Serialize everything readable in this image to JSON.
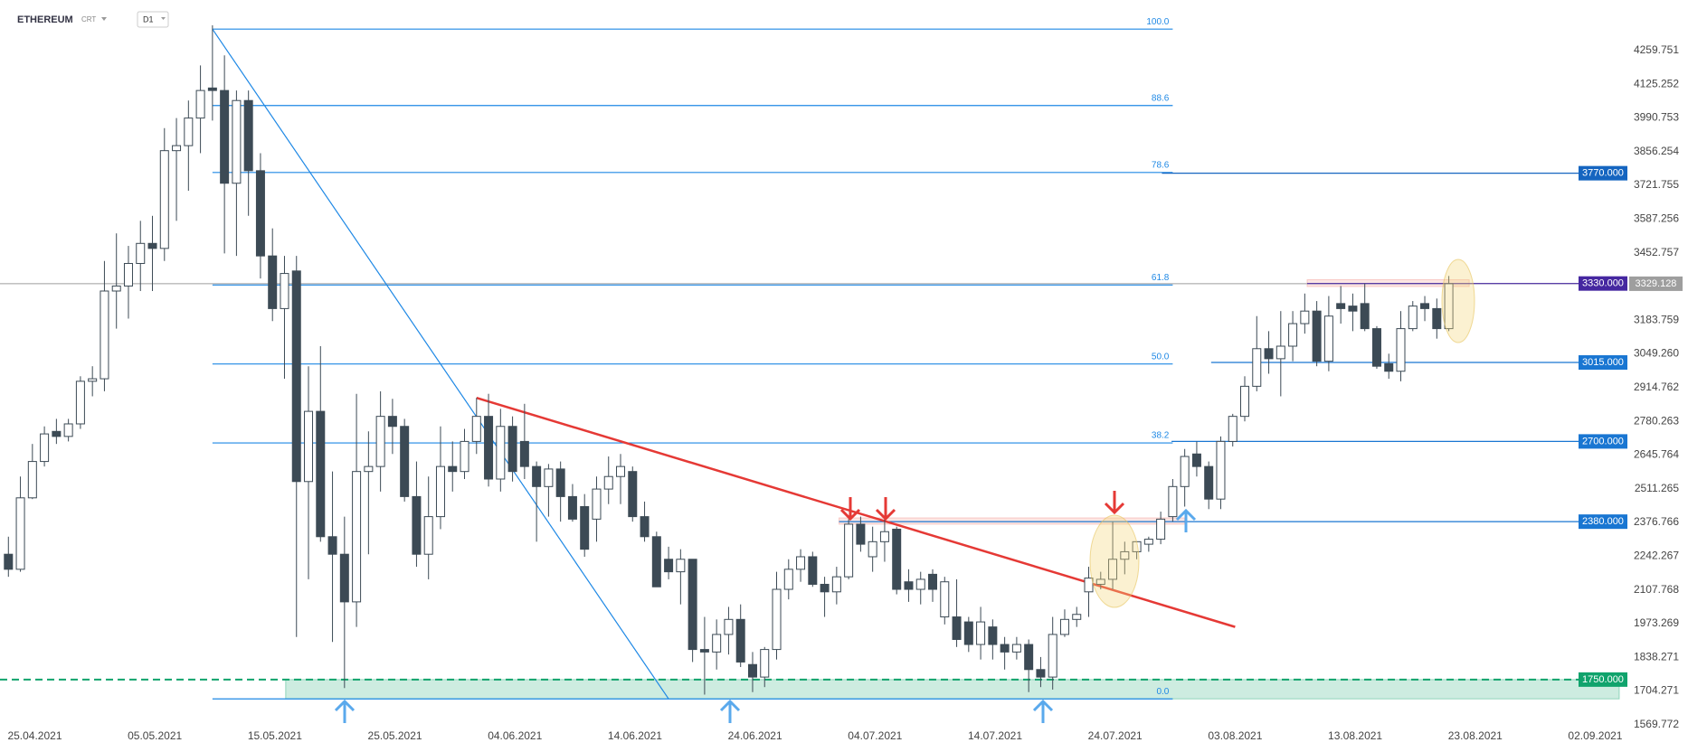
{
  "header": {
    "symbol": "ETHEREUM",
    "market": "CRT",
    "interval": "D1"
  },
  "chart_data": {
    "type": "candlestick",
    "colors": {
      "up": "#ffffff",
      "down": "#3c4a55",
      "outline": "#3c4a55"
    },
    "xlim": [
      -0.7,
      134.2
    ],
    "ylim": [
      1544,
      4461
    ],
    "xticks": [
      {
        "value": 2.2,
        "label": "25.04.2021"
      },
      {
        "value": 12.2,
        "label": "05.05.2021"
      },
      {
        "value": 22.2,
        "label": "15.05.2021"
      },
      {
        "value": 32.2,
        "label": "25.05.2021"
      },
      {
        "value": 42.2,
        "label": "04.06.2021"
      },
      {
        "value": 52.2,
        "label": "14.06.2021"
      },
      {
        "value": 62.2,
        "label": "24.06.2021"
      },
      {
        "value": 72.2,
        "label": "04.07.2021"
      },
      {
        "value": 82.2,
        "label": "14.07.2021"
      },
      {
        "value": 92.2,
        "label": "24.07.2021"
      },
      {
        "value": 102.2,
        "label": "03.08.2021"
      },
      {
        "value": 112.2,
        "label": "13.08.2021"
      },
      {
        "value": 122.2,
        "label": "23.08.2021"
      },
      {
        "value": 132.2,
        "label": "02.09.2021"
      }
    ],
    "yticks": [
      4259.751,
      4125.252,
      3990.753,
      3856.254,
      3721.755,
      3587.256,
      3452.757,
      3183.759,
      {
        "value": 3049.26,
        "label": "3049.260"
      },
      2914.762,
      2780.263,
      2645.764,
      2511.265,
      2376.766,
      2242.267,
      2107.768,
      1973.269,
      1838.271,
      1704.271,
      1569.772
    ],
    "candles": [
      [
        2250,
        2320,
        2160,
        2190
      ],
      [
        2190,
        2560,
        2180,
        2475
      ],
      [
        2475,
        2690,
        2470,
        2620
      ],
      [
        2620,
        2760,
        2600,
        2730
      ],
      [
        2740,
        2790,
        2690,
        2720
      ],
      [
        2720,
        2790,
        2700,
        2770
      ],
      [
        2770,
        2960,
        2750,
        2940
      ],
      [
        2940,
        3000,
        2880,
        2950
      ],
      [
        2950,
        3420,
        2900,
        3300
      ],
      [
        3300,
        3530,
        3150,
        3320
      ],
      [
        3320,
        3480,
        3190,
        3410
      ],
      [
        3410,
        3580,
        3300,
        3490
      ],
      [
        3490,
        3600,
        3300,
        3470
      ],
      [
        3470,
        3950,
        3420,
        3860
      ],
      [
        3860,
        3990,
        3580,
        3880
      ],
      [
        3880,
        4060,
        3700,
        3990
      ],
      [
        3990,
        4200,
        3850,
        4100
      ],
      [
        4110,
        4360,
        3980,
        4100
      ],
      [
        4100,
        4240,
        3450,
        3730
      ],
      [
        3730,
        4100,
        3440,
        4060
      ],
      [
        4060,
        4100,
        3600,
        3780
      ],
      [
        3780,
        3850,
        3350,
        3440
      ],
      [
        3440,
        3550,
        3180,
        3230
      ],
      [
        3230,
        3440,
        2950,
        3370
      ],
      [
        3380,
        3440,
        1920,
        2540
      ],
      [
        2540,
        3000,
        2150,
        2820
      ],
      [
        2820,
        3080,
        2300,
        2320
      ],
      [
        2320,
        2580,
        1900,
        2250
      ],
      [
        2250,
        2400,
        1716,
        2060
      ],
      [
        2060,
        2890,
        1960,
        2580
      ],
      [
        2580,
        2740,
        2250,
        2600
      ],
      [
        2600,
        2900,
        2500,
        2800
      ],
      [
        2800,
        2870,
        2650,
        2760
      ],
      [
        2760,
        2790,
        2460,
        2480
      ],
      [
        2480,
        2620,
        2200,
        2250
      ],
      [
        2250,
        2560,
        2150,
        2400
      ],
      [
        2400,
        2760,
        2350,
        2600
      ],
      [
        2600,
        2700,
        2500,
        2580
      ],
      [
        2580,
        2750,
        2550,
        2700
      ],
      [
        2700,
        2874,
        2650,
        2800
      ],
      [
        2800,
        2890,
        2520,
        2550
      ],
      [
        2550,
        2830,
        2500,
        2760
      ],
      [
        2760,
        2800,
        2540,
        2580
      ],
      [
        2700,
        2850,
        2550,
        2600
      ],
      [
        2600,
        2620,
        2300,
        2520
      ],
      [
        2520,
        2610,
        2400,
        2590
      ],
      [
        2590,
        2620,
        2380,
        2480
      ],
      [
        2480,
        2530,
        2380,
        2390
      ],
      [
        2440,
        2490,
        2240,
        2270
      ],
      [
        2390,
        2560,
        2300,
        2510
      ],
      [
        2510,
        2640,
        2450,
        2560
      ],
      [
        2560,
        2650,
        2450,
        2600
      ],
      [
        2580,
        2600,
        2380,
        2400
      ],
      [
        2400,
        2460,
        2300,
        2320
      ],
      [
        2320,
        2340,
        2120,
        2120
      ],
      [
        2230,
        2280,
        2150,
        2180
      ],
      [
        2180,
        2270,
        2050,
        2230
      ],
      [
        2230,
        2230,
        1820,
        1870
      ],
      [
        1870,
        2000,
        1690,
        1860
      ],
      [
        1860,
        1990,
        1790,
        1930
      ],
      [
        1930,
        2040,
        1850,
        1990
      ],
      [
        1990,
        2050,
        1800,
        1820
      ],
      [
        1810,
        1860,
        1700,
        1760
      ],
      [
        1760,
        1880,
        1720,
        1870
      ],
      [
        1870,
        2180,
        1830,
        2110
      ],
      [
        2110,
        2230,
        2070,
        2190
      ],
      [
        2190,
        2270,
        2140,
        2240
      ],
      [
        2240,
        2260,
        2120,
        2130
      ],
      [
        2130,
        2160,
        2000,
        2100
      ],
      [
        2100,
        2200,
        2050,
        2160
      ],
      [
        2160,
        2390,
        2150,
        2370
      ],
      [
        2370,
        2400,
        2260,
        2290
      ],
      [
        2240,
        2360,
        2180,
        2300
      ],
      [
        2300,
        2400,
        2220,
        2340
      ],
      [
        2350,
        2360,
        2090,
        2110
      ],
      [
        2140,
        2190,
        2060,
        2110
      ],
      [
        2110,
        2180,
        2050,
        2150
      ],
      [
        2170,
        2190,
        2060,
        2110
      ],
      [
        2000,
        2160,
        1970,
        2140
      ],
      [
        2000,
        2150,
        1880,
        1910
      ],
      [
        1980,
        2000,
        1860,
        1890
      ],
      [
        1890,
        2040,
        1830,
        1980
      ],
      [
        1960,
        1990,
        1830,
        1890
      ],
      [
        1890,
        1920,
        1790,
        1860
      ],
      [
        1860,
        1920,
        1830,
        1890
      ],
      [
        1890,
        1910,
        1700,
        1790
      ],
      [
        1790,
        1840,
        1720,
        1760
      ],
      [
        1760,
        2000,
        1710,
        1930
      ],
      [
        1930,
        2030,
        1920,
        1990
      ],
      [
        1990,
        2040,
        1960,
        2010
      ],
      [
        2100,
        2200,
        2000,
        2155
      ],
      [
        2130,
        2180,
        2110,
        2150
      ],
      [
        2150,
        2380,
        2110,
        2230
      ],
      [
        2230,
        2300,
        2170,
        2260
      ],
      [
        2260,
        2300,
        2230,
        2300
      ],
      [
        2290,
        2320,
        2260,
        2310
      ],
      [
        2310,
        2420,
        2290,
        2390
      ],
      [
        2400,
        2550,
        2380,
        2520
      ],
      [
        2520,
        2670,
        2440,
        2640
      ],
      [
        2650,
        2700,
        2560,
        2600
      ],
      [
        2600,
        2620,
        2430,
        2470
      ],
      [
        2470,
        2720,
        2430,
        2700
      ],
      [
        2700,
        2810,
        2680,
        2800
      ],
      [
        2800,
        2960,
        2780,
        2920
      ],
      [
        2920,
        3200,
        2900,
        3070
      ],
      [
        3070,
        3140,
        2970,
        3030
      ],
      [
        3030,
        3220,
        2880,
        3080
      ],
      [
        3080,
        3220,
        3020,
        3170
      ],
      [
        3170,
        3290,
        3130,
        3220
      ],
      [
        3220,
        3260,
        3000,
        3020
      ],
      [
        3020,
        3280,
        2980,
        3200
      ],
      [
        3250,
        3320,
        3170,
        3230
      ],
      [
        3240,
        3290,
        3140,
        3220
      ],
      [
        3250,
        3330,
        3140,
        3150
      ],
      [
        3150,
        3160,
        2990,
        3000
      ],
      [
        3010,
        3050,
        2950,
        2980
      ],
      [
        2980,
        3220,
        2940,
        3150
      ],
      [
        3150,
        3260,
        3140,
        3240
      ],
      [
        3250,
        3280,
        3180,
        3230
      ],
      [
        3230,
        3270,
        3110,
        3150
      ],
      [
        3150,
        3360,
        3140,
        3329.128
      ]
    ],
    "fib": {
      "color": "#1e88e5",
      "start": 17,
      "end": 97,
      "levels": [
        {
          "label": "100.0",
          "price": 4345
        },
        {
          "label": "88.6",
          "price": 4040
        },
        {
          "label": "78.6",
          "price": 3773
        },
        {
          "label": "61.8",
          "price": 3324
        },
        {
          "label": "50.0",
          "price": 3009
        },
        {
          "label": "38.2",
          "price": 2694
        },
        {
          "label": "0.0",
          "price": 1673
        }
      ]
    },
    "zones": [
      {
        "from": [
          23.1,
          1673
        ],
        "to": [
          134.2,
          1750
        ],
        "color": "#1aa874"
      },
      {
        "from": [
          69.2,
          2370
        ],
        "to": [
          98,
          2395
        ],
        "color": "#f28b82"
      },
      {
        "from": [
          108.2,
          3318
        ],
        "to": [
          121.7,
          3345
        ],
        "color": "#f28b82"
      }
    ],
    "trendlines": [
      {
        "from": [
          17,
          4345
        ],
        "to": [
          55,
          1673
        ],
        "color": "#1e88e5",
        "width": 1.2
      },
      {
        "from": [
          39,
          2874
        ],
        "to": [
          102.2,
          1960
        ],
        "color": "#e53935",
        "width": 2.5
      }
    ],
    "price_levels": [
      {
        "value": 3770,
        "label": "3770.000",
        "color": "#1565c0",
        "start": 96.1
      },
      {
        "value": 3330,
        "label": "3330.000",
        "color": "#4527a0",
        "start": 108.2
      },
      {
        "value": 3015,
        "label": "3015.000",
        "color": "#1976d2",
        "start": 100.2
      },
      {
        "value": 2700,
        "label": "2700.000",
        "color": "#1976d2",
        "start": 96.9
      },
      {
        "value": 2380,
        "label": "2380.000",
        "color": "#1976d2",
        "start": 69.2
      },
      {
        "value": 1750,
        "label": "1750.000",
        "color": "#10a36c",
        "start": -0.7,
        "dashed": true
      }
    ],
    "last_price": {
      "value": 3329.128,
      "label": "3329.128",
      "color": "#9e9e9e"
    }
  }
}
